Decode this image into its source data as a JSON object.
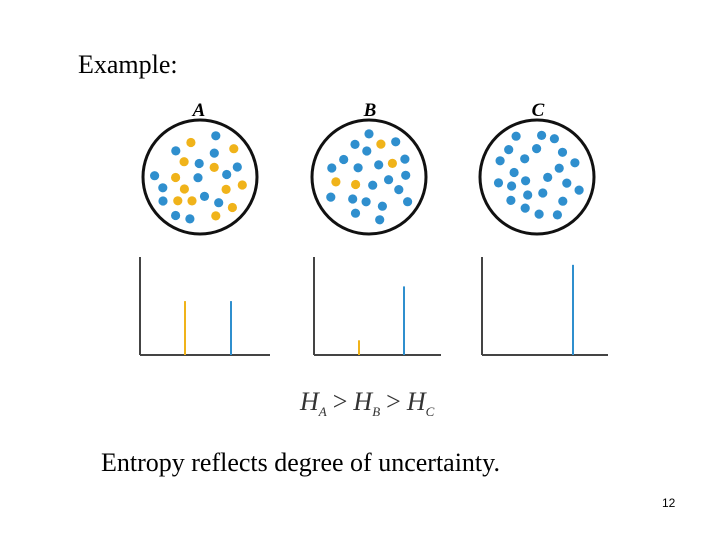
{
  "slide": {
    "heading": "Example:",
    "caption": "Entropy reflects degree of uncertainty.",
    "page_number": "12"
  },
  "colors": {
    "blue": "#2f8fce",
    "yellow": "#f0b31a",
    "outline": "#111111",
    "axis": "#444444"
  },
  "panels": [
    {
      "label": "A",
      "dot_counts": {
        "yellow": 12,
        "blue": 14
      },
      "histogram": {
        "yellow_level": 0.55,
        "blue_level": 0.55
      }
    },
    {
      "label": "B",
      "dot_counts": {
        "yellow": 4,
        "blue": 20
      },
      "histogram": {
        "yellow_level": 0.15,
        "blue_level": 0.7
      }
    },
    {
      "label": "C",
      "dot_counts": {
        "yellow": 0,
        "blue": 24
      },
      "histogram": {
        "yellow_level": 0.0,
        "blue_level": 0.92
      }
    }
  ],
  "formula": {
    "parts": [
      {
        "symbol": "H",
        "subscript": "A"
      },
      {
        "operator": ">"
      },
      {
        "symbol": "H",
        "subscript": "B"
      },
      {
        "operator": ">"
      },
      {
        "symbol": "H",
        "subscript": "C"
      }
    ]
  }
}
